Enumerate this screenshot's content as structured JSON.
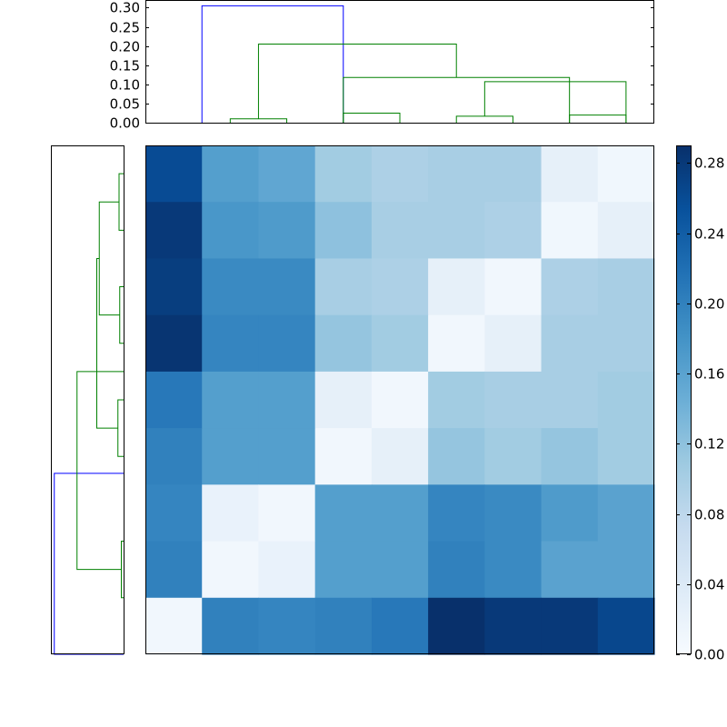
{
  "chart_data": [
    {
      "type": "dendrogram",
      "orientation": "top",
      "yticks": [
        "0.00",
        "0.05",
        "0.10",
        "0.15",
        "0.20",
        "0.25",
        "0.30"
      ],
      "ylim": [
        0,
        0.32
      ],
      "colors": {
        "root": "#0000ff",
        "cluster": "#008000"
      },
      "links": [
        {
          "left": 0.5,
          "right": 3.0,
          "height": 0.305,
          "color": "#0000ff"
        },
        {
          "left": 1.5,
          "right": 5.0,
          "height": 0.205,
          "color": "#008000"
        },
        {
          "left": 1.0,
          "right": 2.0,
          "height": 0.01,
          "color": "#008000"
        },
        {
          "left": 3.0,
          "right": 7.0,
          "height": 0.118,
          "color": "#008000"
        },
        {
          "left": 3.0,
          "right": 4.0,
          "height": 0.025,
          "color": "#008000"
        },
        {
          "left": 5.5,
          "right": 8.0,
          "height": 0.107,
          "color": "#008000"
        },
        {
          "left": 5.0,
          "right": 6.0,
          "height": 0.017,
          "color": "#008000"
        },
        {
          "left": 7.0,
          "right": 8.0,
          "height": 0.02,
          "color": "#008000"
        }
      ]
    },
    {
      "type": "dendrogram",
      "orientation": "left",
      "xlim": [
        0,
        0.32
      ],
      "colors": {
        "root": "#0000ff",
        "cluster": "#008000"
      },
      "links": [
        {
          "top": 5.3,
          "bottom": 8.5,
          "height": 0.305,
          "color": "#0000ff"
        },
        {
          "top": 3.5,
          "bottom": 7.0,
          "height": 0.205,
          "color": "#008000"
        },
        {
          "top": 1.5,
          "bottom": 4.5,
          "height": 0.118,
          "color": "#008000"
        },
        {
          "top": 0.5,
          "bottom": 2.5,
          "height": 0.107,
          "color": "#008000"
        },
        {
          "top": 0.0,
          "bottom": 1.0,
          "height": 0.02,
          "color": "#008000"
        },
        {
          "top": 2.0,
          "bottom": 3.0,
          "height": 0.017,
          "color": "#008000"
        },
        {
          "top": 4.0,
          "bottom": 5.0,
          "height": 0.025,
          "color": "#008000"
        },
        {
          "top": 6.5,
          "bottom": 7.5,
          "height": 0.01,
          "color": "#008000"
        }
      ]
    },
    {
      "type": "heatmap",
      "colormap": "Blues",
      "vmin": 0,
      "vmax": 0.29,
      "values": [
        [
          0.26,
          0.165,
          0.155,
          0.105,
          0.095,
          0.1,
          0.1,
          0.025,
          0.01
        ],
        [
          0.28,
          0.175,
          0.17,
          0.12,
          0.1,
          0.1,
          0.095,
          0.01,
          0.025
        ],
        [
          0.275,
          0.19,
          0.19,
          0.1,
          0.095,
          0.025,
          0.008,
          0.095,
          0.1
        ],
        [
          0.285,
          0.195,
          0.195,
          0.115,
          0.105,
          0.008,
          0.025,
          0.1,
          0.1
        ],
        [
          0.21,
          0.165,
          0.165,
          0.025,
          0.008,
          0.105,
          0.1,
          0.1,
          0.105
        ],
        [
          0.2,
          0.165,
          0.165,
          0.008,
          0.025,
          0.115,
          0.105,
          0.115,
          0.105
        ],
        [
          0.195,
          0.02,
          0.008,
          0.165,
          0.165,
          0.195,
          0.19,
          0.17,
          0.16
        ],
        [
          0.2,
          0.008,
          0.02,
          0.165,
          0.165,
          0.2,
          0.19,
          0.16,
          0.16
        ],
        [
          0.008,
          0.2,
          0.195,
          0.2,
          0.21,
          0.29,
          0.28,
          0.28,
          0.265
        ]
      ]
    },
    {
      "type": "colorbar",
      "ticks": [
        "0.00",
        "0.04",
        "0.08",
        "0.12",
        "0.16",
        "0.20",
        "0.24",
        "0.28"
      ],
      "range": [
        0,
        0.29
      ]
    }
  ]
}
